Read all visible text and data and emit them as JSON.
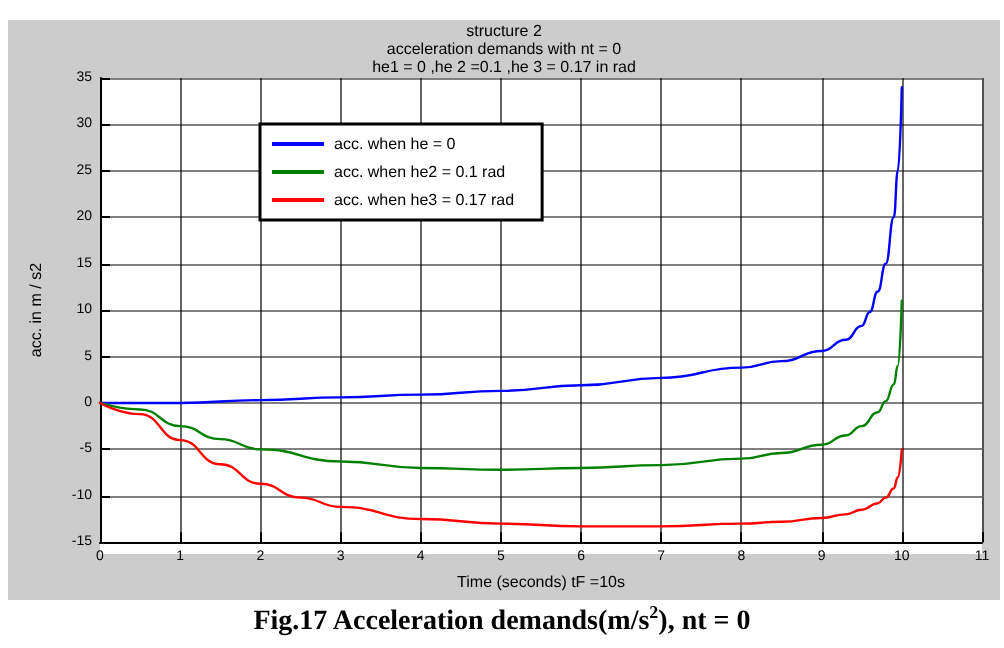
{
  "chart_data": {
    "type": "line",
    "title": "structure 2\nacceleration demands with nt = 0\nhe1 = 0 ,he 2 =0.1 ,he 3 = 0.17 in rad",
    "xlabel": "Time (seconds) tF =10s",
    "ylabel": "acc. in m / s2",
    "annotations": [
      "Fig.17  Acceleration demands(m/s$^{2}$), nt = 0"
    ],
    "series": [
      {
        "name": "acc. when he = 0",
        "color": "#0000ff",
        "x": [
          0,
          1,
          2,
          3,
          4,
          5,
          6,
          7,
          8,
          8.5,
          9,
          9.3,
          9.5,
          9.6,
          9.7,
          9.8,
          9.9,
          9.95,
          10
        ],
        "values": [
          0,
          0,
          0.3,
          0.6,
          0.9,
          1.3,
          1.9,
          2.7,
          3.8,
          4.5,
          5.6,
          6.8,
          8.3,
          9.8,
          12,
          15,
          20,
          25,
          34
        ]
      },
      {
        "name": "acc. when he2 = 0.1 rad",
        "color": "#008000",
        "x": [
          0,
          0.5,
          1,
          1.5,
          2,
          3,
          4,
          5,
          6,
          7,
          8,
          8.5,
          9,
          9.3,
          9.5,
          9.7,
          9.8,
          9.9,
          9.95,
          10
        ],
        "values": [
          0,
          -0.7,
          -2.5,
          -3.9,
          -5,
          -6.3,
          -7,
          -7.2,
          -7,
          -6.7,
          -6,
          -5.4,
          -4.5,
          -3.5,
          -2.5,
          -1,
          0.2,
          2,
          4,
          11
        ]
      },
      {
        "name": "acc. when he3 = 0.17 rad",
        "color": "#ff0000",
        "x": [
          0,
          0.5,
          1,
          1.5,
          2,
          2.5,
          3,
          4,
          5,
          6,
          7,
          8,
          8.5,
          9,
          9.3,
          9.5,
          9.7,
          9.8,
          9.9,
          9.95,
          10
        ],
        "values": [
          0,
          -1.2,
          -4,
          -6.6,
          -8.7,
          -10.2,
          -11.2,
          -12.5,
          -13,
          -13.3,
          -13.3,
          -13,
          -12.8,
          -12.4,
          -12,
          -11.5,
          -10.8,
          -10.2,
          -9.2,
          -8,
          -5
        ]
      }
    ],
    "xlim": [
      0,
      11
    ],
    "xticks": [
      0,
      1,
      2,
      3,
      4,
      5,
      6,
      7,
      8,
      9,
      10,
      11
    ],
    "ylim": [
      -15,
      35
    ],
    "yticks": [
      -15,
      -10,
      -5,
      0,
      5,
      10,
      15,
      20,
      25,
      30,
      35
    ],
    "grid": true,
    "legend": "top left",
    "marker": "none",
    "line_style": "solid"
  }
}
